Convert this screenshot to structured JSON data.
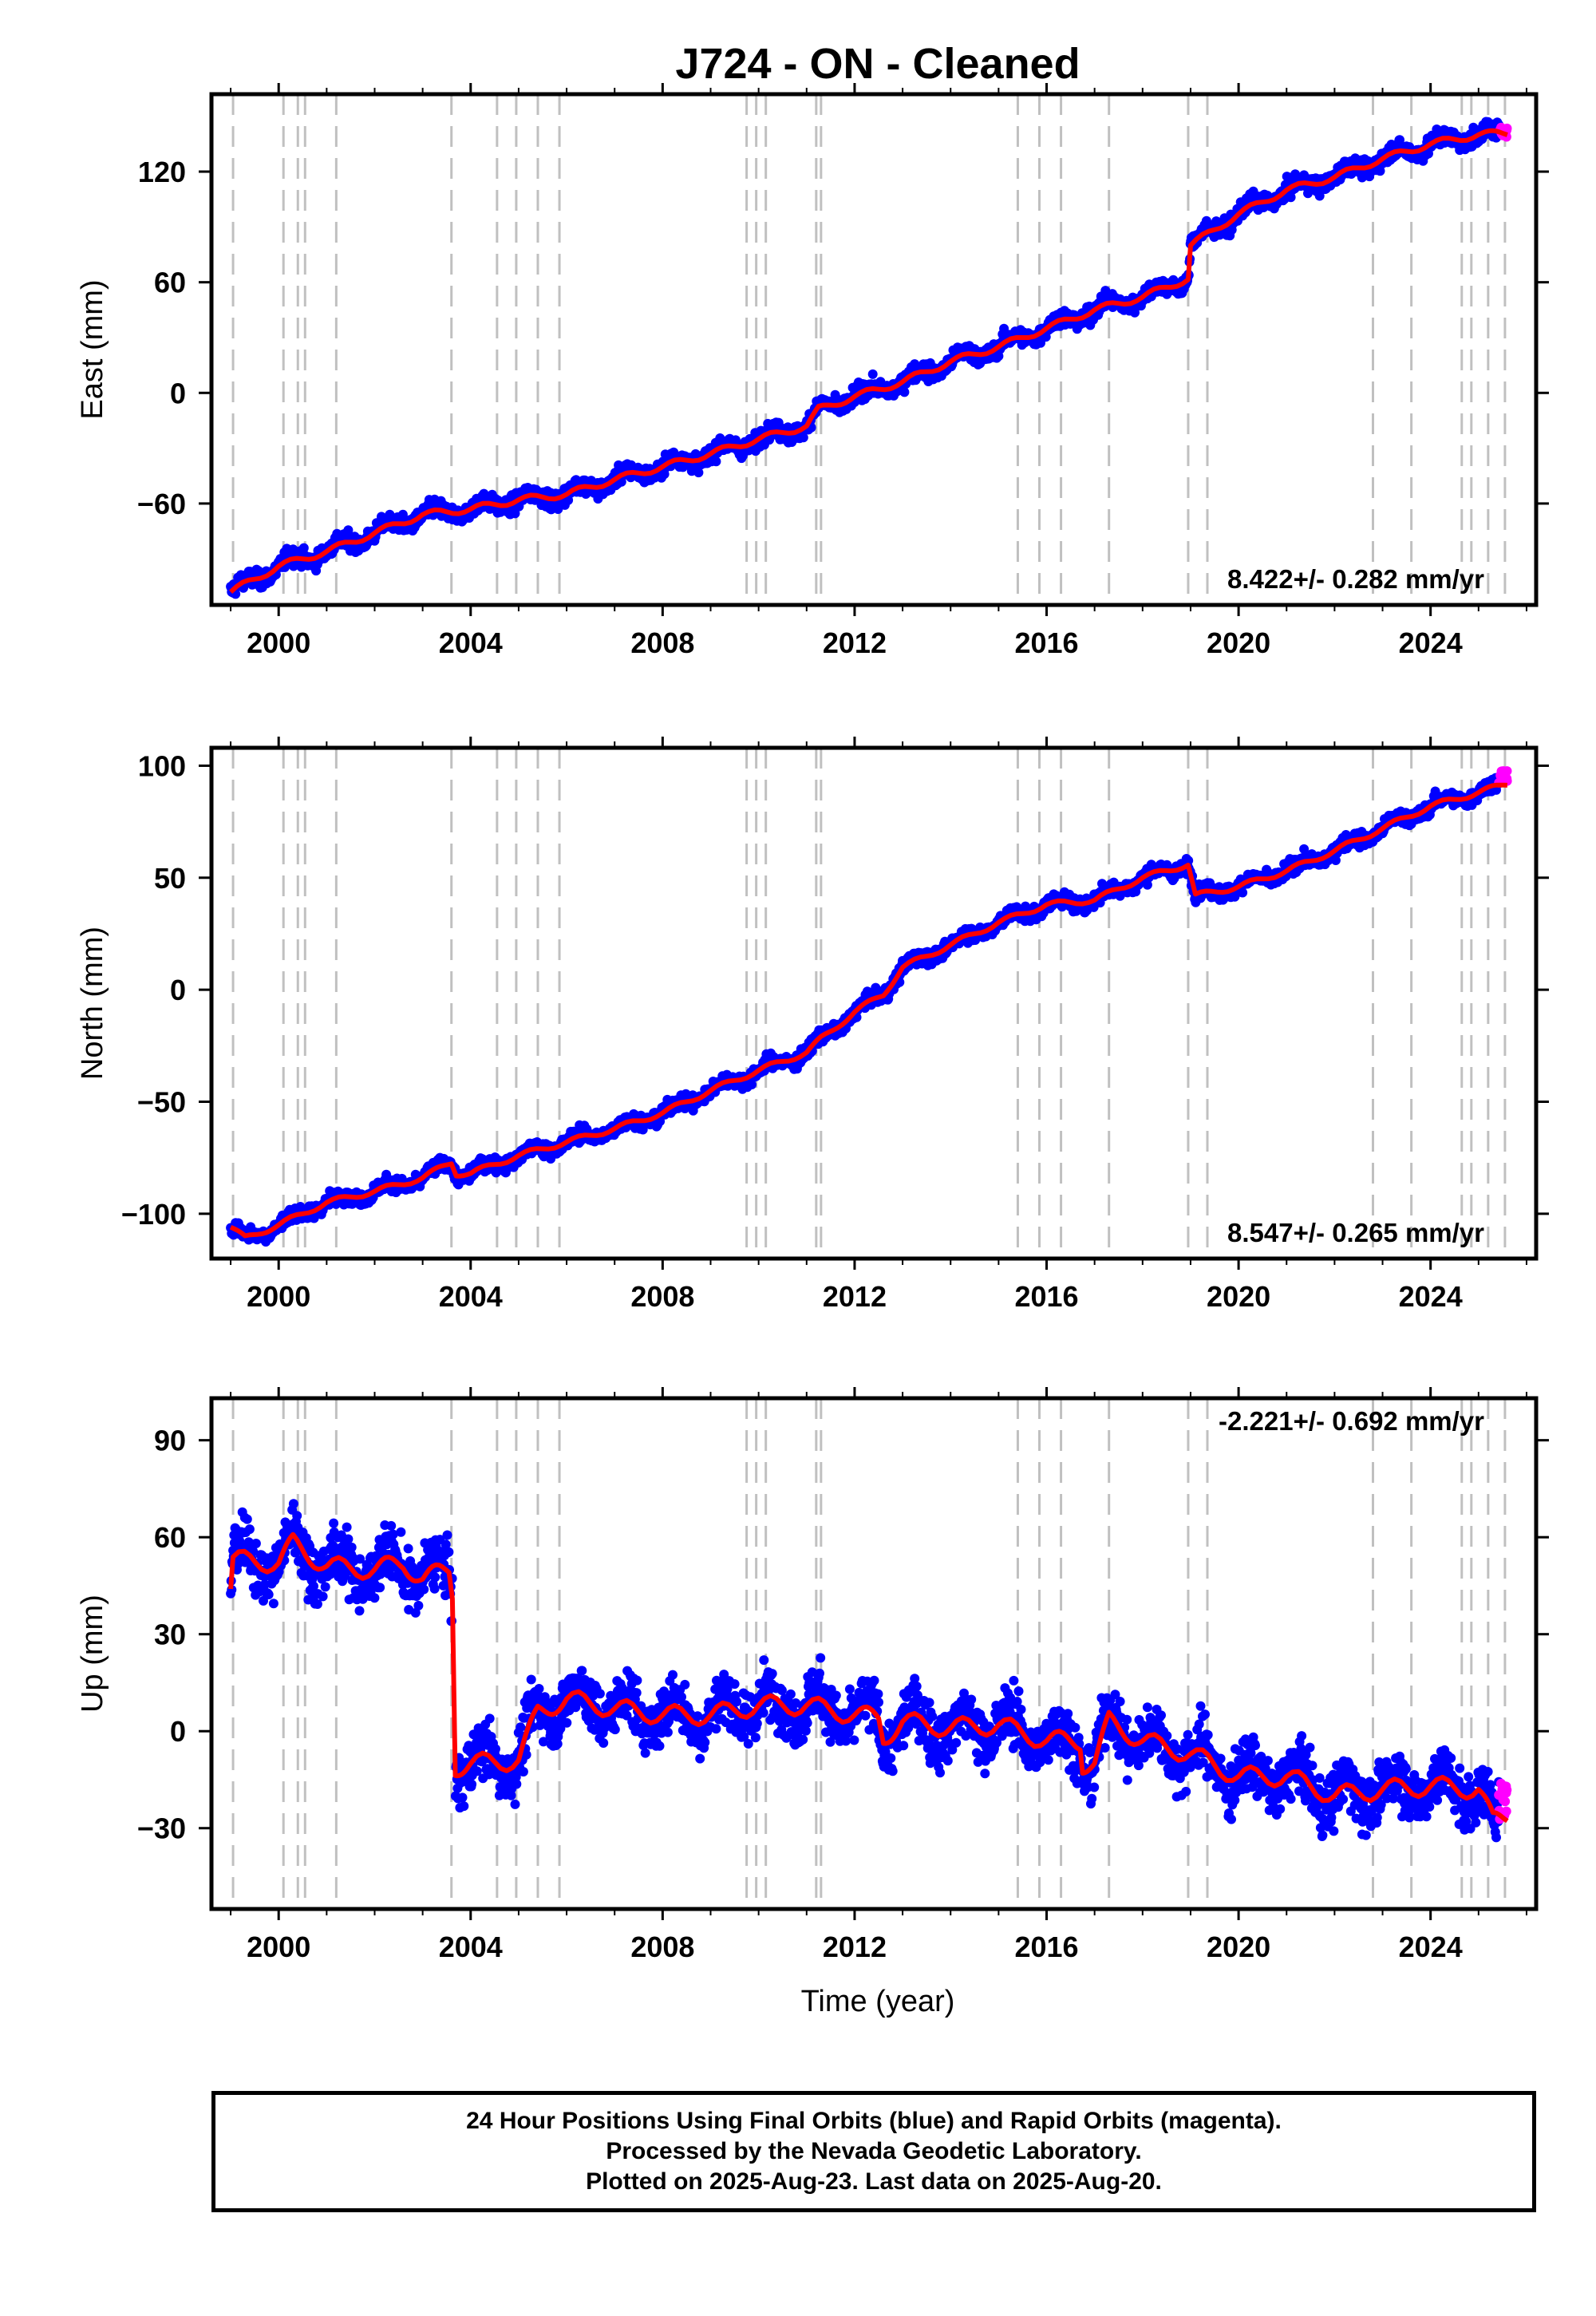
{
  "title": "J724  - ON - Cleaned",
  "xlabel": "Time (year)",
  "footer": {
    "line1": "24 Hour Positions Using Final Orbits (blue) and Rapid Orbits (magenta).",
    "line2": "Processed by the Nevada Geodetic Laboratory.",
    "line3": "Plotted on 2025-Aug-23. Last data on 2025-Aug-20."
  },
  "colors": {
    "final_points": "#0000ff",
    "rapid_points": "#ff00ff",
    "model_line": "#ff0000",
    "event_lines": "#c0c0c0"
  },
  "chart_data": [
    {
      "type": "scatter",
      "panel": "east",
      "ylabel": "East (mm)",
      "xlim": [
        1998.6,
        2026.2
      ],
      "ylim": [
        -115,
        162
      ],
      "xticks": [
        2000,
        2004,
        2008,
        2012,
        2016,
        2020,
        2024
      ],
      "yticks": [
        -60,
        0,
        60,
        120
      ],
      "rate_label": "8.422+/- 0.282 mm/yr",
      "event_lines": [
        1999.05,
        2000.1,
        2000.4,
        2000.55,
        2001.2,
        2003.6,
        2004.55,
        2004.95,
        2005.4,
        2005.85,
        2009.75,
        2009.95,
        2010.15,
        2011.2,
        2011.3,
        2015.4,
        2015.85,
        2016.3,
        2017.3,
        2018.95,
        2019.35,
        2022.8,
        2023.6,
        2024.65,
        2024.85,
        2025.2,
        2025.55
      ],
      "fit": [
        [
          1999.0,
          -108
        ],
        [
          2000,
          -94
        ],
        [
          2001,
          -86
        ],
        [
          2002,
          -76
        ],
        [
          2003,
          -66
        ],
        [
          2004,
          -63
        ],
        [
          2005,
          -58
        ],
        [
          2006,
          -55
        ],
        [
          2007,
          -47
        ],
        [
          2008,
          -40
        ],
        [
          2009,
          -33
        ],
        [
          2010,
          -25
        ],
        [
          2011,
          -18
        ],
        [
          2011.25,
          -9
        ],
        [
          2012,
          -2
        ],
        [
          2013,
          6
        ],
        [
          2014,
          17
        ],
        [
          2015,
          25
        ],
        [
          2016,
          35
        ],
        [
          2017,
          45
        ],
        [
          2018,
          52
        ],
        [
          2018.95,
          62
        ],
        [
          2019.0,
          80
        ],
        [
          2020,
          97
        ],
        [
          2021,
          110
        ],
        [
          2022,
          117
        ],
        [
          2023,
          127
        ],
        [
          2024,
          135
        ],
        [
          2025,
          140
        ],
        [
          2025.6,
          141
        ]
      ],
      "scatter": {
        "noise": 4.5,
        "seasonal": 3
      },
      "rapid": {
        "x0": 2025.42,
        "x1": 2025.6,
        "y": 141,
        "spread": 6
      }
    },
    {
      "type": "scatter",
      "panel": "north",
      "ylabel": "North (mm)",
      "xlim": [
        1998.6,
        2026.2
      ],
      "ylim": [
        -120,
        108
      ],
      "xticks": [
        2000,
        2004,
        2008,
        2012,
        2016,
        2020,
        2024
      ],
      "yticks": [
        -100,
        -50,
        0,
        50,
        100
      ],
      "rate_label": "8.547+/- 0.265 mm/yr",
      "event_lines": [
        1999.05,
        2000.1,
        2000.4,
        2000.55,
        2001.2,
        2003.6,
        2004.55,
        2004.95,
        2005.4,
        2005.85,
        2009.75,
        2009.95,
        2010.15,
        2011.2,
        2011.3,
        2015.4,
        2015.85,
        2016.3,
        2017.3,
        2018.95,
        2019.35,
        2022.8,
        2023.6,
        2024.65,
        2024.85,
        2025.2,
        2025.55
      ],
      "fit": [
        [
          1999.0,
          -106
        ],
        [
          1999.3,
          -111
        ],
        [
          2000,
          -105
        ],
        [
          2001,
          -95
        ],
        [
          2002,
          -90
        ],
        [
          2003,
          -84
        ],
        [
          2003.6,
          -77
        ],
        [
          2003.7,
          -82
        ],
        [
          2004,
          -82
        ],
        [
          2005,
          -74
        ],
        [
          2006,
          -68
        ],
        [
          2007,
          -62
        ],
        [
          2008,
          -55
        ],
        [
          2009,
          -45
        ],
        [
          2010,
          -36
        ],
        [
          2011,
          -28
        ],
        [
          2011.3,
          -22
        ],
        [
          2012,
          -10
        ],
        [
          2012.6,
          -2
        ],
        [
          2013,
          10
        ],
        [
          2014,
          20
        ],
        [
          2015,
          30
        ],
        [
          2016,
          38
        ],
        [
          2017,
          40
        ],
        [
          2018,
          50
        ],
        [
          2018.95,
          56
        ],
        [
          2019.1,
          42
        ],
        [
          2020,
          46
        ],
        [
          2021,
          53
        ],
        [
          2022,
          62
        ],
        [
          2023,
          72
        ],
        [
          2024,
          82
        ],
        [
          2025,
          88
        ],
        [
          2025.6,
          92
        ]
      ],
      "scatter": {
        "noise": 3.2,
        "seasonal": 2
      },
      "rapid": {
        "x0": 2025.42,
        "x1": 2025.6,
        "y": 95,
        "spread": 6
      }
    },
    {
      "type": "scatter",
      "panel": "up",
      "ylabel": "Up (mm)",
      "xlim": [
        1998.6,
        2026.2
      ],
      "ylim": [
        -55,
        103
      ],
      "xticks": [
        2000,
        2004,
        2008,
        2012,
        2016,
        2020,
        2024
      ],
      "yticks": [
        -30,
        0,
        30,
        60,
        90
      ],
      "rate_label": "-2.221+/- 0.692 mm/yr",
      "event_lines": [
        1999.05,
        2000.1,
        2000.4,
        2000.55,
        2001.2,
        2003.6,
        2004.55,
        2004.95,
        2005.4,
        2005.85,
        2009.75,
        2009.95,
        2010.15,
        2011.2,
        2011.3,
        2015.4,
        2015.85,
        2016.3,
        2017.3,
        2018.95,
        2019.35,
        2022.8,
        2023.6,
        2024.65,
        2024.85,
        2025.2,
        2025.55
      ],
      "fit": [
        [
          1999.0,
          44
        ],
        [
          1999.05,
          53
        ],
        [
          2000,
          52
        ],
        [
          2000.3,
          58
        ],
        [
          2001,
          51
        ],
        [
          2002,
          50
        ],
        [
          2002.6,
          52
        ],
        [
          2003,
          47
        ],
        [
          2003.55,
          50
        ],
        [
          2003.62,
          43
        ],
        [
          2003.68,
          -11
        ],
        [
          2004,
          -10
        ],
        [
          2005,
          -9
        ],
        [
          2005.4,
          6
        ],
        [
          2006,
          10
        ],
        [
          2007,
          7
        ],
        [
          2008,
          5
        ],
        [
          2009,
          5
        ],
        [
          2010,
          8
        ],
        [
          2011,
          8
        ],
        [
          2012,
          5
        ],
        [
          2012.5,
          4
        ],
        [
          2012.6,
          -2
        ],
        [
          2013,
          3
        ],
        [
          2014,
          1
        ],
        [
          2015,
          2
        ],
        [
          2016,
          -3
        ],
        [
          2016.7,
          -3
        ],
        [
          2016.75,
          -10
        ],
        [
          2017,
          -10
        ],
        [
          2017.3,
          3
        ],
        [
          2018,
          -3
        ],
        [
          2019,
          -7
        ],
        [
          2020,
          -14
        ],
        [
          2021,
          -14
        ],
        [
          2022,
          -20
        ],
        [
          2023,
          -18
        ],
        [
          2024,
          -17
        ],
        [
          2025,
          -18
        ],
        [
          2025.3,
          -28
        ],
        [
          2025.6,
          -26
        ]
      ],
      "scatter": {
        "noise": 8.5,
        "seasonal": 5
      },
      "rapid": {
        "x0": 2025.42,
        "x1": 2025.6,
        "y": -22,
        "spread": 14
      }
    }
  ]
}
